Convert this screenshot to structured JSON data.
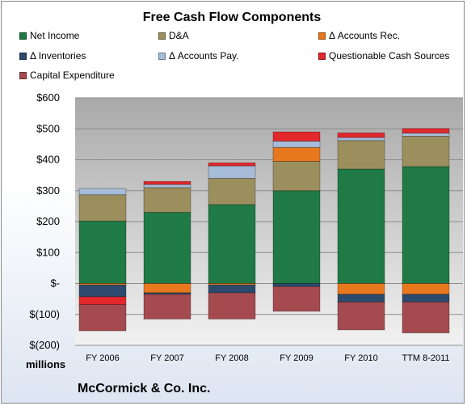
{
  "chart_data": {
    "type": "bar",
    "stacked": true,
    "title": "Free Cash Flow Components",
    "categories": [
      "FY 2006",
      "FY 2007",
      "FY 2008",
      "FY 2009",
      "FY 2010",
      "TTM 8-2011"
    ],
    "y_ticks": [
      "$600",
      "$500",
      "$400",
      "$300",
      "$200",
      "$100",
      "$-",
      "$(100)",
      "$(200)"
    ],
    "y_tick_values": [
      600,
      500,
      400,
      300,
      200,
      100,
      0,
      -100,
      -200
    ],
    "ylim": [
      -200,
      600
    ],
    "grid": true,
    "legend_position": "top",
    "units_label": "millions",
    "series": [
      {
        "name": "Net Income",
        "color": "#1f7a45",
        "values": [
          202,
          230,
          255,
          300,
          370,
          378
        ]
      },
      {
        "name": "D&A",
        "color": "#9c8f5e",
        "values": [
          85,
          80,
          85,
          95,
          92,
          98
        ]
      },
      {
        "name": "Δ Accounts Rec.",
        "color": "#e8781e",
        "values": [
          -5,
          -30,
          -5,
          45,
          -35,
          -35
        ]
      },
      {
        "name": "Δ Inventories",
        "color": "#2b4a6d",
        "values": [
          -38,
          -5,
          -25,
          -10,
          -25,
          -25
        ]
      },
      {
        "name": "Δ Accounts Pay.",
        "color": "#a6bcd8",
        "values": [
          20,
          10,
          40,
          20,
          10,
          10
        ]
      },
      {
        "name": "Questionable Cash Sources",
        "color": "#e2282b",
        "values": [
          -25,
          10,
          10,
          30,
          15,
          15
        ]
      },
      {
        "name": "Capital Expenditure",
        "color": "#a54a4f",
        "values": [
          -85,
          -80,
          -85,
          -80,
          -90,
          -100
        ]
      }
    ]
  },
  "footer": {
    "company": "McCormick & Co. Inc."
  }
}
